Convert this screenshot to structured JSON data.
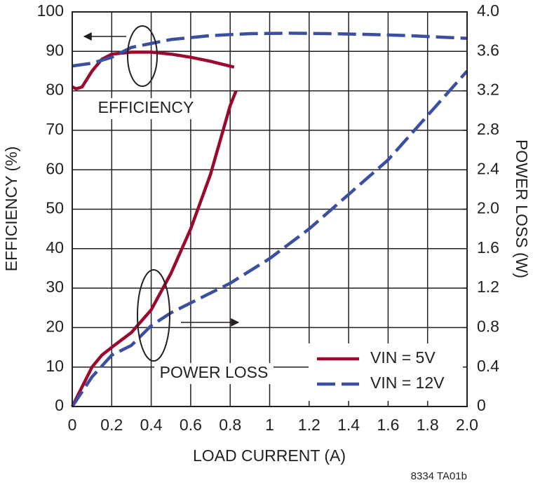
{
  "chart_data": {
    "type": "line",
    "x_label": "LOAD CURRENT (A)",
    "y_label": "EFFICIENCY (%)",
    "y2_label": "POWER LOSS (W)",
    "xlim": [
      0,
      2.0
    ],
    "xticks": [
      0,
      0.2,
      0.4,
      0.6,
      0.8,
      1,
      1.2,
      1.4,
      1.6,
      1.8,
      {
        "value": 2.0,
        "label": "2.0"
      }
    ],
    "ylim": [
      0,
      100
    ],
    "yticks": [
      0,
      10,
      20,
      30,
      40,
      50,
      60,
      70,
      80,
      90,
      100
    ],
    "y2lim": [
      0,
      4.0
    ],
    "y2ticks": [
      0,
      0.4,
      0.8,
      1.2,
      1.6,
      {
        "value": 2.0,
        "label": "2.0"
      },
      2.4,
      2.8,
      3.2,
      3.6,
      {
        "value": 4.0,
        "label": "4.0"
      }
    ],
    "grid": true,
    "legend": "lower right",
    "annotations": [
      "EFFICIENCY",
      "POWER LOSS"
    ],
    "footnote": "8334 TA01b",
    "series": [
      {
        "name": "VIN = 5V",
        "color": "#9b0a2e",
        "dashed": false,
        "efficiency": {
          "x": [
            0,
            0.02,
            0.05,
            0.1,
            0.15,
            0.2,
            0.3,
            0.4,
            0.5,
            0.6,
            0.7,
            0.82
          ],
          "values": [
            81,
            80.5,
            81,
            85,
            88,
            89.3,
            89.8,
            89.8,
            89.3,
            88.5,
            87.5,
            86
          ]
        },
        "power_loss": {
          "axis": "y2",
          "x": [
            0,
            0.05,
            0.1,
            0.15,
            0.2,
            0.3,
            0.4,
            0.5,
            0.6,
            0.7,
            0.8,
            0.83
          ],
          "values": [
            0,
            0.2,
            0.4,
            0.52,
            0.6,
            0.75,
            0.98,
            1.35,
            1.8,
            2.35,
            3.05,
            3.2
          ]
        }
      },
      {
        "name": "VIN = 12V",
        "color": "#3a4fa0",
        "dashed": true,
        "efficiency": {
          "x": [
            0,
            0.1,
            0.2,
            0.3,
            0.4,
            0.5,
            0.7,
            0.9,
            1.1,
            1.3,
            1.5,
            1.7,
            2.0
          ],
          "values": [
            86.3,
            87,
            88.5,
            91,
            92,
            93,
            94,
            94.5,
            94.6,
            94.5,
            94.3,
            94,
            93.3
          ]
        },
        "power_loss": {
          "axis": "y2",
          "x": [
            0,
            0.1,
            0.2,
            0.3,
            0.4,
            0.5,
            0.6,
            0.8,
            1.0,
            1.2,
            1.4,
            1.6,
            1.8,
            2.0
          ],
          "values": [
            0,
            0.3,
            0.52,
            0.62,
            0.82,
            0.95,
            1.05,
            1.25,
            1.5,
            1.8,
            2.15,
            2.5,
            2.95,
            3.4
          ]
        }
      }
    ]
  }
}
